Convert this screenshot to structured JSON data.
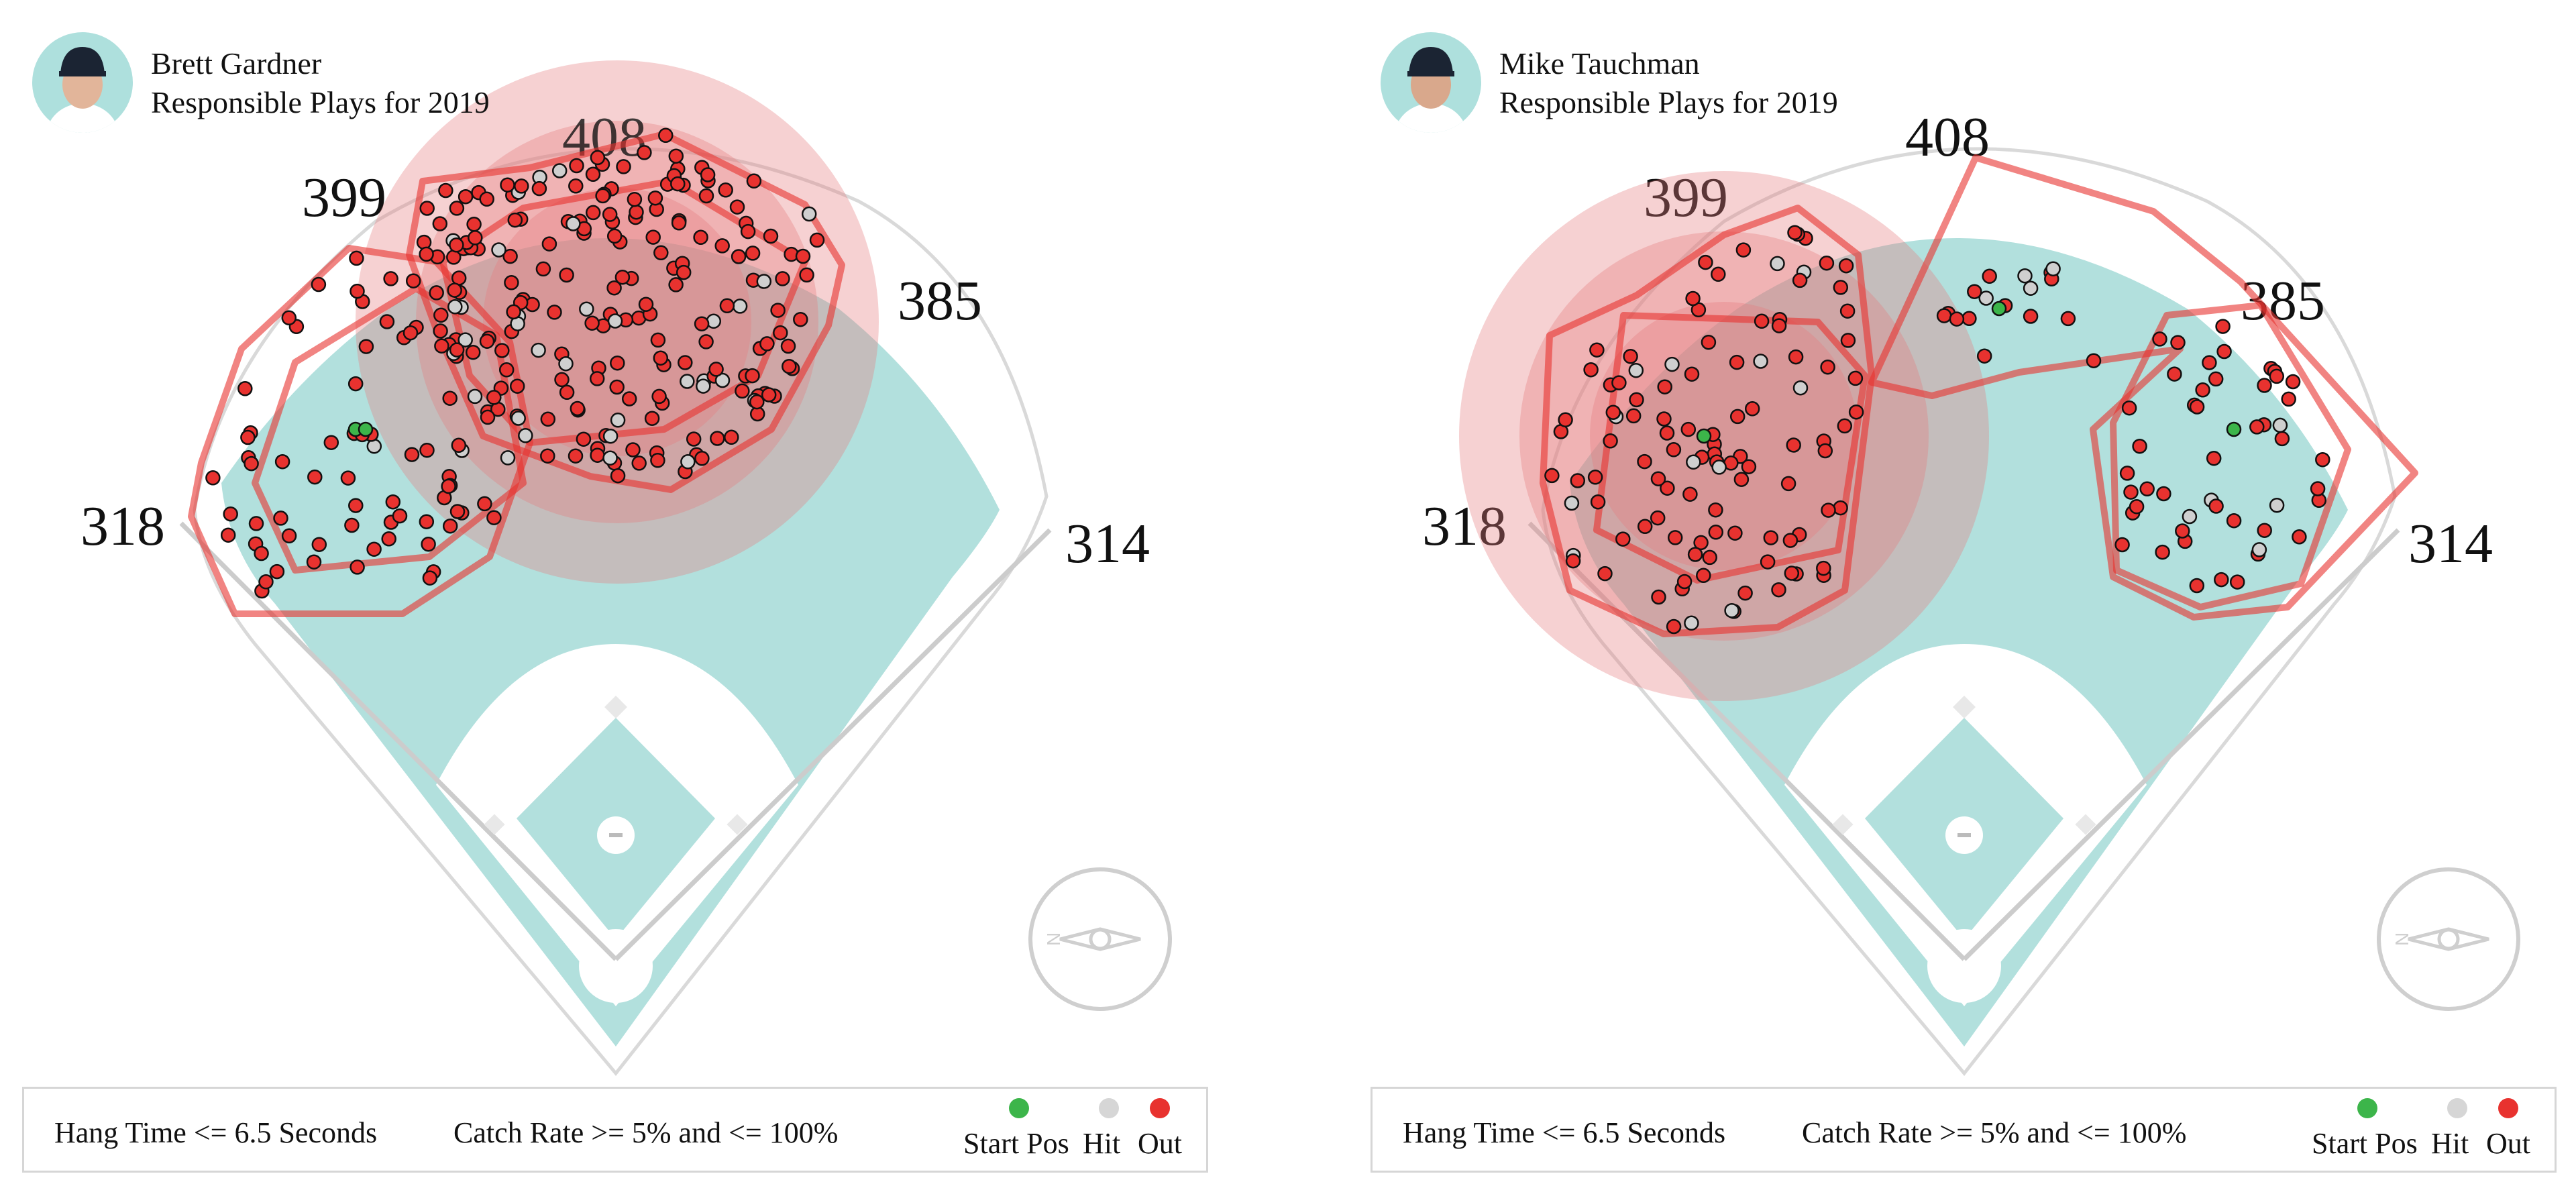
{
  "panels": [
    {
      "player_name": "Brett Gardner",
      "subtitle": "Responsible Plays for 2019",
      "distances": {
        "lf": "318",
        "lcf": "399",
        "cf": "408",
        "rcf": "385",
        "rf": "314"
      },
      "filters": {
        "hang_time": "Hang Time <= 6.5 Seconds",
        "catch_rate": "Catch Rate >= 5% and <= 100%"
      },
      "legend": {
        "start": "Start Pos",
        "hit": "Hit",
        "out": "Out"
      },
      "compass_label": "N"
    },
    {
      "player_name": "Mike Tauchman",
      "subtitle": "Responsible Plays for 2019",
      "distances": {
        "lf": "318",
        "lcf": "399",
        "cf": "408",
        "rcf": "385",
        "rf": "314"
      },
      "filters": {
        "hang_time": "Hang Time <= 6.5 Seconds",
        "catch_rate": "Catch Rate >= 5% and <= 100%"
      },
      "legend": {
        "start": "Start Pos",
        "hit": "Hit",
        "out": "Out"
      },
      "compass_label": "N"
    }
  ],
  "colors": {
    "out": "#e8322f",
    "hit": "#cfcfcf",
    "start": "#3cb54a",
    "grass": "#b2e0dd",
    "zone": "#e67c7f"
  },
  "chart_data": [
    {
      "type": "scatter",
      "title": "Brett Gardner Responsible Plays for 2019",
      "counts": {
        "out": 250,
        "hit": 35,
        "start": 2
      },
      "hull_groups": 4
    },
    {
      "type": "scatter",
      "title": "Mike Tauchman Responsible Plays for 2019",
      "counts": {
        "out": 150,
        "hit": 22,
        "start": 3
      },
      "hull_groups": 4
    }
  ]
}
